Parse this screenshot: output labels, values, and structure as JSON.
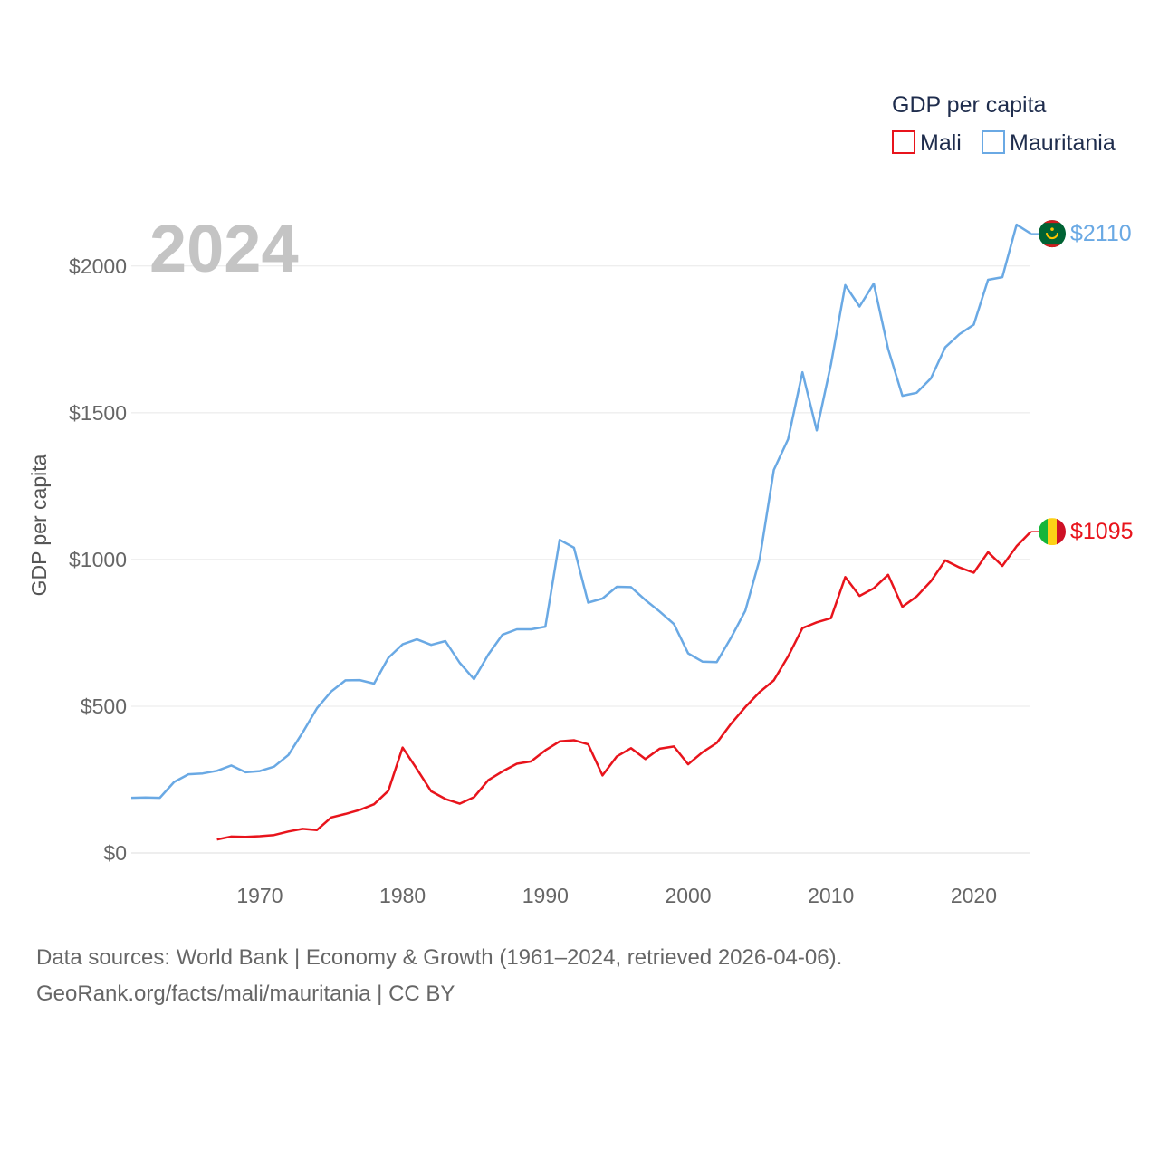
{
  "chart_data": {
    "type": "line",
    "title": "",
    "year_label": "2024",
    "ylabel": "GDP per capita",
    "xlabel": "",
    "xlim": [
      1961,
      2024
    ],
    "ylim": [
      0,
      2200
    ],
    "y_ticks": [
      0,
      500,
      1000,
      1500,
      2000
    ],
    "y_tick_labels": [
      "$0",
      "$500",
      "$1000",
      "$1500",
      "$2000"
    ],
    "x_ticks": [
      1970,
      1980,
      1990,
      2000,
      2010,
      2020
    ],
    "x_tick_labels": [
      "1970",
      "1980",
      "1990",
      "2000",
      "2010",
      "2020"
    ],
    "grid": true,
    "legend": {
      "title": "GDP per capita",
      "position": "top-right",
      "entries": [
        "Mali",
        "Mauritania"
      ]
    },
    "series": [
      {
        "name": "Mali",
        "color": "#e8141c",
        "end_label": "$1095",
        "flag": "mali-flag",
        "x": [
          1967,
          1968,
          1969,
          1970,
          1971,
          1972,
          1973,
          1974,
          1975,
          1976,
          1977,
          1978,
          1979,
          1980,
          1981,
          1982,
          1983,
          1984,
          1985,
          1986,
          1987,
          1988,
          1989,
          1990,
          1991,
          1992,
          1993,
          1994,
          1995,
          1996,
          1997,
          1998,
          1999,
          2000,
          2001,
          2002,
          2003,
          2004,
          2005,
          2006,
          2007,
          2008,
          2009,
          2010,
          2011,
          2012,
          2013,
          2014,
          2015,
          2016,
          2017,
          2018,
          2019,
          2020,
          2021,
          2022,
          2023,
          2024
        ],
        "values": [
          46,
          56,
          55,
          57,
          61,
          73,
          82,
          78,
          121,
          133,
          147,
          166,
          212,
          359,
          286,
          210,
          184,
          168,
          190,
          248,
          278,
          304,
          312,
          350,
          380,
          384,
          370,
          264,
          329,
          357,
          320,
          355,
          363,
          302,
          343,
          375,
          440,
          497,
          548,
          588,
          670,
          766,
          786,
          800,
          940,
          876,
          902,
          948,
          839,
          874,
          926,
          997,
          973,
          955,
          1025,
          978,
          1045,
          1095
        ]
      },
      {
        "name": "Mauritania",
        "color": "#6aa9e4",
        "end_label": "$2110",
        "flag": "mauritania-flag",
        "x": [
          1961,
          1962,
          1963,
          1964,
          1965,
          1966,
          1967,
          1968,
          1969,
          1970,
          1971,
          1972,
          1973,
          1974,
          1975,
          1976,
          1977,
          1978,
          1979,
          1980,
          1981,
          1982,
          1983,
          1984,
          1985,
          1986,
          1987,
          1988,
          1989,
          1990,
          1991,
          1992,
          1993,
          1994,
          1995,
          1996,
          1997,
          1998,
          1999,
          2000,
          2001,
          2002,
          2003,
          2004,
          2005,
          2006,
          2007,
          2008,
          2009,
          2010,
          2011,
          2012,
          2013,
          2014,
          2015,
          2016,
          2017,
          2018,
          2019,
          2020,
          2021,
          2022,
          2023,
          2024
        ],
        "values": [
          188,
          189,
          188,
          242,
          268,
          271,
          280,
          298,
          275,
          279,
          294,
          334,
          410,
          493,
          550,
          588,
          589,
          577,
          665,
          711,
          728,
          709,
          722,
          648,
          592,
          676,
          744,
          762,
          762,
          771,
          1067,
          1040,
          853,
          867,
          907,
          906,
          862,
          823,
          780,
          680,
          652,
          650,
          733,
          825,
          1000,
          1305,
          1410,
          1638,
          1440,
          1665,
          1935,
          1862,
          1940,
          1718,
          1558,
          1568,
          1617,
          1723,
          1768,
          1800,
          1953,
          1962,
          2141,
          2110
        ]
      }
    ]
  },
  "footer": {
    "source_line": "Data sources: World Bank | Economy & Growth (1961–2024, retrieved 2026-04-06).",
    "credit_line": "GeoRank.org/facts/mali/mauritania | CC BY"
  }
}
